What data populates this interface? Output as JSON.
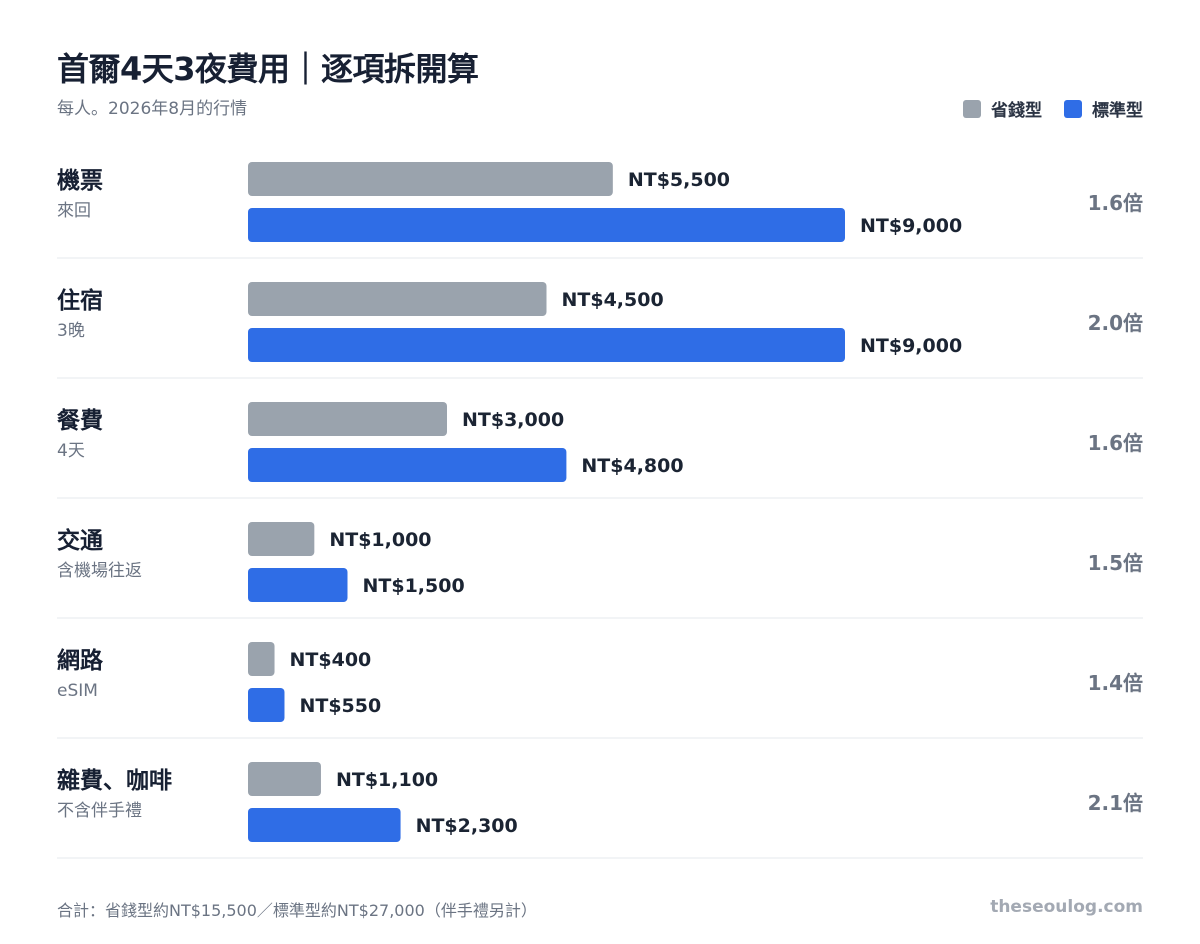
{
  "header": {
    "title": "首爾4天3夜費用｜逐項拆開算",
    "subtitle": "每人。2026年8月的行情"
  },
  "legend": [
    {
      "label": "省錢型",
      "color": "#9aa3ad"
    },
    {
      "label": "標準型",
      "color": "#2f6de6"
    }
  ],
  "chart_data": {
    "type": "bar",
    "orientation": "horizontal",
    "categories": [
      {
        "name": "機票",
        "note": "來回",
        "ratio_label": "1.6倍"
      },
      {
        "name": "住宿",
        "note": "3晚",
        "ratio_label": "2.0倍"
      },
      {
        "name": "餐費",
        "note": "4天",
        "ratio_label": "1.6倍"
      },
      {
        "name": "交通",
        "note": "含機場往返",
        "ratio_label": "1.5倍"
      },
      {
        "name": "網路",
        "note": "eSIM",
        "ratio_label": "1.4倍"
      },
      {
        "name": "雜費、咖啡",
        "note": "不含伴手禮",
        "ratio_label": "2.1倍"
      }
    ],
    "series": [
      {
        "name": "省錢型",
        "values": [
          5500,
          4500,
          3000,
          1000,
          400,
          1100
        ],
        "labels": [
          "NT$5,500",
          "NT$4,500",
          "NT$3,000",
          "NT$1,000",
          "NT$400",
          "NT$1,100"
        ],
        "color": "#9aa3ad"
      },
      {
        "name": "標準型",
        "values": [
          9000,
          9000,
          4800,
          1500,
          550,
          2300
        ],
        "labels": [
          "NT$9,000",
          "NT$9,000",
          "NT$4,800",
          "NT$1,500",
          "NT$550",
          "NT$2,300"
        ],
        "color": "#2f6de6"
      }
    ],
    "xlim": [
      0,
      9000
    ],
    "grid": false,
    "legend_position": "top-right"
  },
  "footer": {
    "note": "合計：省錢型約NT$15,500／標準型約NT$27,000（伴手禮另計）",
    "brand": "theseoulog.com"
  }
}
